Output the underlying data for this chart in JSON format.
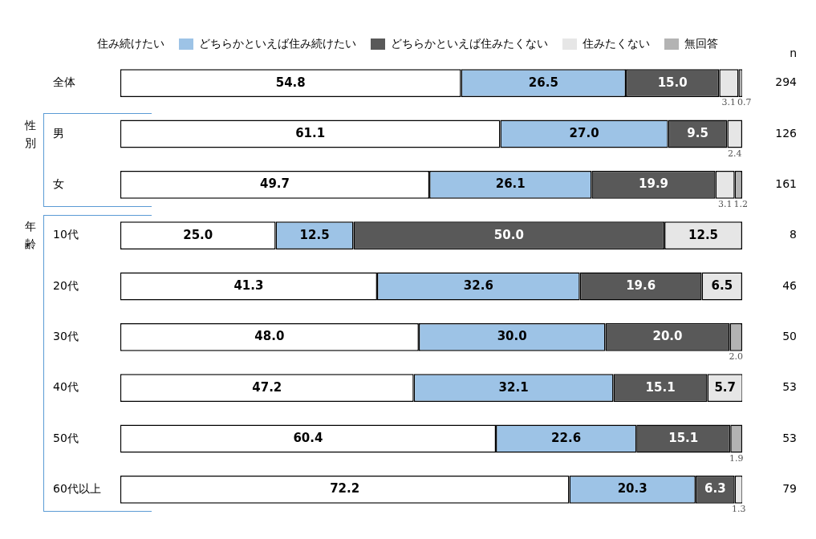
{
  "chart_data": {
    "type": "bar",
    "orientation": "horizontal",
    "stacked": true,
    "legend": "top",
    "tick_labels": "y",
    "xlim": [
      0,
      100
    ],
    "categories": [
      "全体",
      "男",
      "女",
      "10代",
      "20代",
      "30代",
      "40代",
      "50代",
      "60代以上"
    ],
    "series": [
      {
        "name": "住み続けたい",
        "color": "#ffffff",
        "values": [
          54.8,
          61.1,
          49.7,
          25.0,
          41.3,
          48.0,
          47.2,
          60.4,
          72.2
        ],
        "value_labels": [
          "54.8",
          "61.1",
          "49.7",
          "25.0",
          "41.3",
          "48.0",
          "47.2",
          "60.4",
          "72.2"
        ]
      },
      {
        "name": "どちらかといえば住み続けたい",
        "color": "#9dc3e6",
        "values": [
          26.5,
          27.0,
          26.1,
          12.5,
          32.6,
          30.0,
          32.1,
          22.6,
          20.3
        ],
        "value_labels": [
          "26.5",
          "27.0",
          "26.1",
          "12.5",
          "32.6",
          "30.0",
          "32.1",
          "22.6",
          "20.3"
        ]
      },
      {
        "name": "どちらかといえば住みたくない",
        "color": "#595959",
        "values": [
          15.0,
          9.5,
          19.9,
          50.0,
          19.6,
          20.0,
          15.1,
          15.1,
          6.3
        ],
        "value_labels": [
          "15.0",
          "9.5",
          "19.9",
          "50.0",
          "19.6",
          "20.0",
          "15.1",
          "15.1",
          "6.3"
        ]
      },
      {
        "name": "住みたくない",
        "color": "#e6e6e6",
        "values": [
          3.1,
          2.4,
          3.1,
          12.5,
          6.5,
          null,
          5.7,
          null,
          1.3
        ],
        "value_labels": [
          "3.1",
          "2.4",
          "3.1",
          "12.5",
          "6.5",
          null,
          "5.7",
          null,
          "1.3"
        ]
      },
      {
        "name": "無回答",
        "color": "#b3b3b3",
        "values": [
          0.7,
          null,
          1.2,
          null,
          null,
          2.0,
          null,
          1.9,
          null
        ],
        "value_labels": [
          "0.7",
          null,
          "1.2",
          null,
          null,
          "2.0",
          null,
          "1.9",
          null
        ]
      }
    ],
    "annotations": [
      "性別",
      "年齢",
      "n",
      "294",
      "126",
      "161",
      "8",
      "46",
      "50",
      "53",
      "53",
      "79"
    ]
  }
}
